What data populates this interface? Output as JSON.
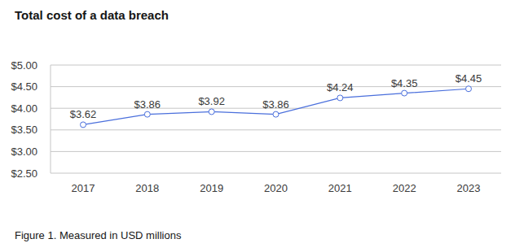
{
  "chart_data": {
    "type": "line",
    "title": "Total cost of a data breach",
    "caption": "Figure 1. Measured in USD millions",
    "categories": [
      "2017",
      "2018",
      "2019",
      "2020",
      "2021",
      "2022",
      "2023"
    ],
    "values": [
      3.62,
      3.86,
      3.92,
      3.86,
      4.24,
      4.35,
      4.45
    ],
    "value_labels": [
      "$3.62",
      "$3.86",
      "$3.92",
      "$3.86",
      "$4.24",
      "$4.35",
      "$4.45"
    ],
    "color": "#4a6fdc",
    "marker": "circle",
    "data_labels": true,
    "grid": true,
    "ylim": [
      2.5,
      5
    ],
    "yticks": [
      {
        "value": 2.5,
        "label": "$2.50"
      },
      {
        "value": 3,
        "label": "$3.00"
      },
      {
        "value": 3.5,
        "label": "$3.50"
      },
      {
        "value": 4,
        "label": "$4.00"
      },
      {
        "value": 4.5,
        "label": "$4.50"
      },
      {
        "value": 5,
        "label": "$5.00"
      }
    ]
  }
}
